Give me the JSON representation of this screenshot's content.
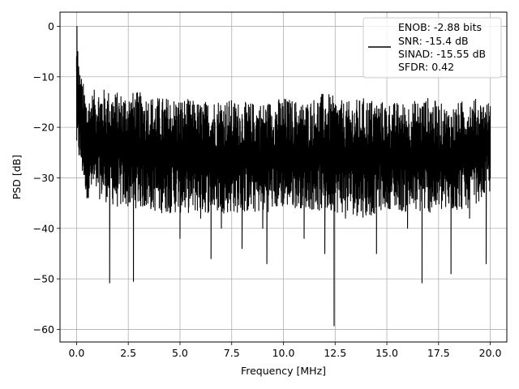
{
  "chart_data": {
    "type": "line",
    "xlabel": "Frequency [MHz]",
    "ylabel": "PSD [dB]",
    "xlim": [
      -0.8,
      20.8
    ],
    "ylim": [
      -62.5,
      2.8
    ],
    "xticks": [
      0.0,
      2.5,
      5.0,
      7.5,
      10.0,
      12.5,
      15.0,
      17.5,
      20.0
    ],
    "xtick_labels": [
      "0.0",
      "2.5",
      "5.0",
      "7.5",
      "10.0",
      "12.5",
      "15.0",
      "17.5",
      "20.0"
    ],
    "yticks": [
      0,
      -10,
      -20,
      -30,
      -40,
      -50,
      -60
    ],
    "ytick_labels": [
      "0",
      "−10",
      "−20",
      "−30",
      "−40",
      "−50",
      "−60"
    ],
    "grid": true,
    "legend_position": "top-right",
    "legend_lines": [
      "ENOB: -2.88 bits",
      "SNR: -15.4 dB",
      "SINAD: -15.55 dB",
      "SFDR: 0.42"
    ],
    "line_color": "#000000",
    "series": [
      {
        "x": [
          0.0,
          0.02,
          0.04,
          0.06,
          0.08,
          0.1,
          0.15,
          0.2,
          0.3,
          0.4,
          0.5,
          1.0,
          1.6,
          2.0,
          2.75,
          3.0,
          4.0,
          5.0,
          6.0,
          6.5,
          7.0,
          8.0,
          9.0,
          9.2,
          10.0,
          11.0,
          12.0,
          12.3,
          12.45,
          13.0,
          14.0,
          14.5,
          15.0,
          16.0,
          16.7,
          17.0,
          18.0,
          18.1,
          19.0,
          19.8,
          20.0
        ],
        "y": [
          -6.0,
          0.0,
          -12.0,
          -5.0,
          -14.0,
          -8.0,
          -17.0,
          -20.0,
          -25.0,
          -22.0,
          -34.0,
          -30.0,
          -50.8,
          -32.0,
          -50.5,
          -25.0,
          -36.0,
          -42.0,
          -38.0,
          -46.0,
          -40.0,
          -44.0,
          -40.0,
          -47.0,
          -30.0,
          -42.0,
          -45.0,
          -30.0,
          -59.3,
          -38.0,
          -36.0,
          -45.0,
          -25.0,
          -40.0,
          -50.8,
          -36.0,
          -35.0,
          -49.0,
          -38.0,
          -47.0,
          -30.0
        ]
      }
    ],
    "noise_band": {
      "x": [
        0.0,
        0.5,
        1.0,
        2.0,
        3.0,
        4.0,
        5.0,
        6.0,
        7.0,
        8.0,
        9.0,
        10.0,
        11.0,
        12.0,
        13.0,
        14.0,
        15.0,
        16.0,
        17.0,
        18.0,
        19.0,
        20.0
      ],
      "upper": [
        -6,
        -14,
        -12,
        -13,
        -13,
        -14,
        -14,
        -15,
        -14,
        -15,
        -15,
        -14,
        -15,
        -13,
        -15,
        -14,
        -15,
        -15,
        -14,
        -16,
        -14,
        -15
      ],
      "lower": [
        -25,
        -34,
        -34,
        -36,
        -36,
        -37,
        -37,
        -37,
        -37,
        -37,
        -37,
        -36,
        -36,
        -37,
        -37,
        -38,
        -36,
        -37,
        -37,
        -37,
        -36,
        -33
      ]
    }
  }
}
